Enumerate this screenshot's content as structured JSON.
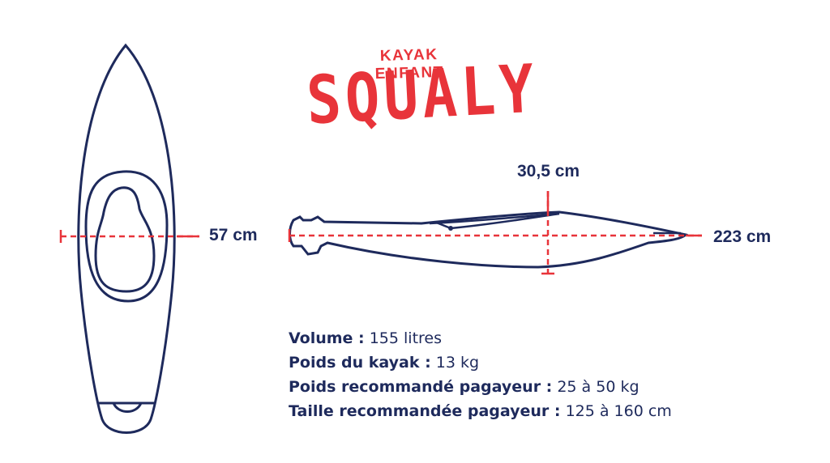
{
  "heading": {
    "subtitle": "KAYAK ENFANT",
    "title": "SQUALY"
  },
  "dimensions": {
    "width": "57 cm",
    "height": "30,5 cm",
    "length": "223 cm"
  },
  "specs": [
    {
      "label": "Volume :",
      "value": "155 litres"
    },
    {
      "label": "Poids du kayak :",
      "value": "13 kg"
    },
    {
      "label": "Poids recommandé pagayeur :",
      "value": "25 à 50 kg"
    },
    {
      "label": "Taille recommandée pagayeur :",
      "value": "125 à 160 cm"
    }
  ],
  "colors": {
    "navy": "#1e2a5c",
    "red": "#e8343a"
  }
}
